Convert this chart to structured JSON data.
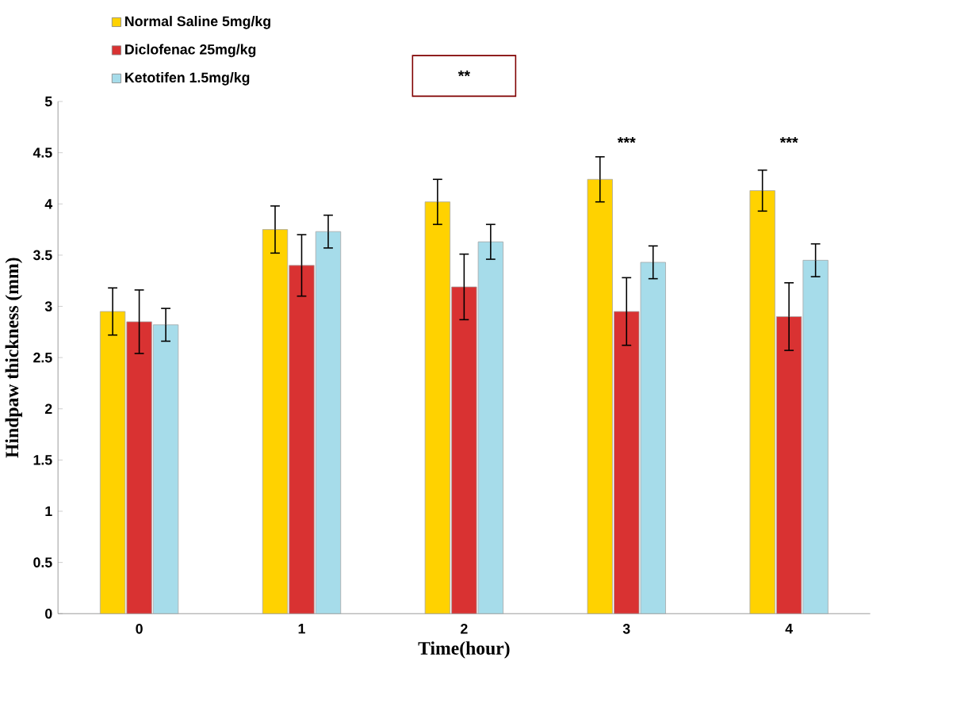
{
  "chart_data": {
    "type": "bar",
    "xlabel": "Time(hour)",
    "ylabel": "Hindpaw thickness (mm)",
    "categories": [
      "0",
      "1",
      "2",
      "3",
      "4"
    ],
    "series": [
      {
        "name": "Normal Saline 5mg/kg",
        "color": "#ffd200",
        "values": [
          2.95,
          3.75,
          4.02,
          4.24,
          4.13
        ],
        "errors": [
          0.23,
          0.23,
          0.22,
          0.22,
          0.2
        ]
      },
      {
        "name": "Diclofenac 25mg/kg",
        "color": "#d93232",
        "values": [
          2.85,
          3.4,
          3.19,
          2.95,
          2.9
        ],
        "errors": [
          0.31,
          0.3,
          0.32,
          0.33,
          0.33
        ]
      },
      {
        "name": "Ketotifen 1.5mg/kg",
        "color": "#a6dcea",
        "values": [
          2.82,
          3.73,
          3.63,
          3.43,
          3.45
        ],
        "errors": [
          0.16,
          0.16,
          0.17,
          0.16,
          0.16
        ]
      }
    ],
    "ylim": [
      0,
      5
    ],
    "yticks": [
      0,
      0.5,
      1,
      1.5,
      2,
      2.5,
      3,
      3.5,
      4,
      4.5,
      5
    ],
    "grid": false,
    "legend": "top left",
    "annotations": [
      "**",
      "***",
      "***"
    ]
  }
}
